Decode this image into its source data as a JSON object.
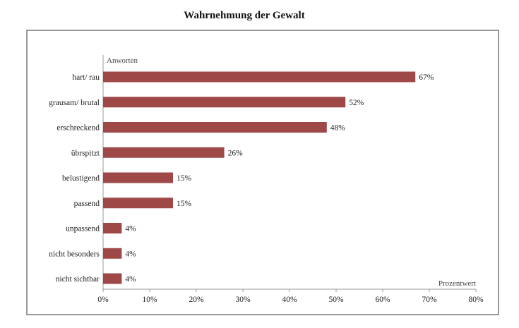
{
  "chart_data": {
    "type": "bar",
    "orientation": "horizontal",
    "title": "Wahrnehmung der Gewalt",
    "xlabel": "Prozentwert",
    "ylabel": "Anworten",
    "categories": [
      "hart/ rau",
      "grausam/ brutal",
      "erschreckend",
      "übrspitzt",
      "belustigend",
      "passend",
      "unpassend",
      "nicht besonders",
      "nicht sichtbar"
    ],
    "values": [
      67,
      52,
      48,
      26,
      15,
      15,
      4,
      4,
      4
    ],
    "data_labels": [
      "67%",
      "52%",
      "48%",
      "26%",
      "15%",
      "15%",
      "4%",
      "4%",
      "4%"
    ],
    "xlim": [
      0,
      80
    ],
    "xticks": [
      "0%",
      "10%",
      "20%",
      "30%",
      "40%",
      "50%",
      "60%",
      "70%",
      "80%"
    ],
    "grid": false,
    "bar_color": "#9e4848"
  }
}
